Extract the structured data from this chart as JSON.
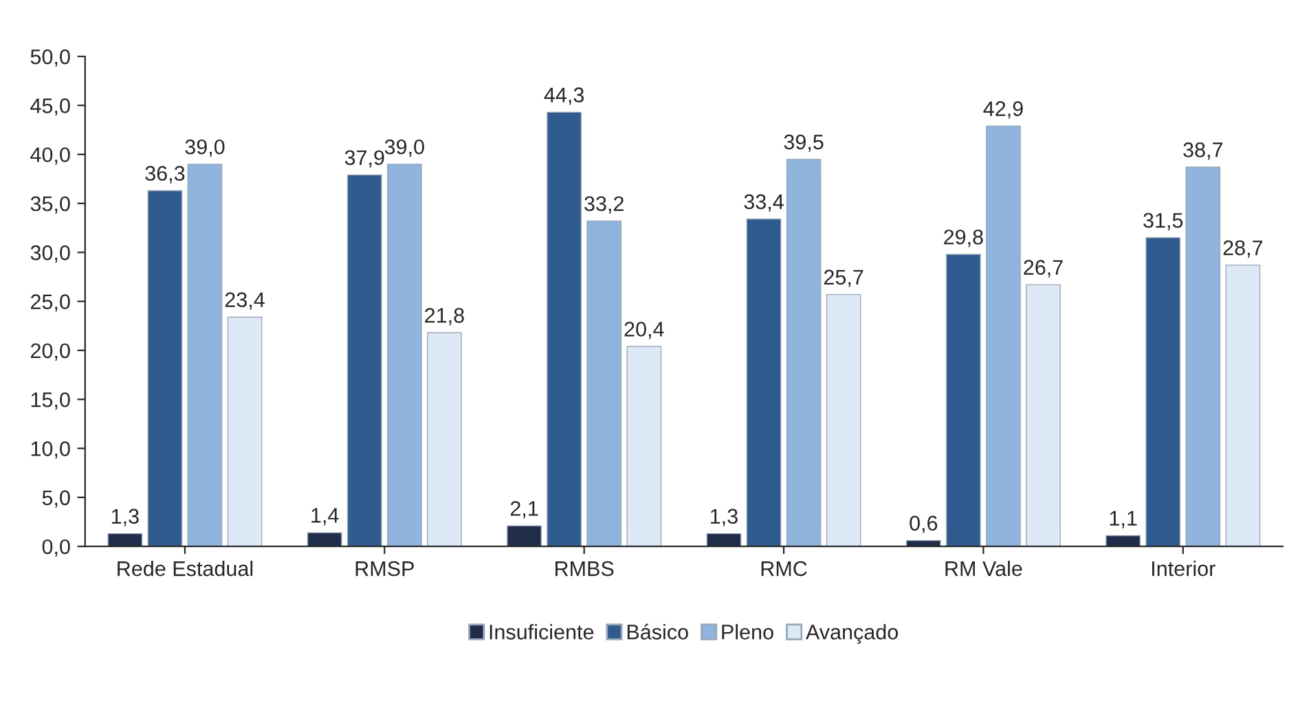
{
  "chart_data": {
    "type": "bar",
    "categories": [
      "Rede Estadual",
      "RMSP",
      "RMBS",
      "RMC",
      "RM Vale",
      "Interior"
    ],
    "series": [
      {
        "name": "Insuficiente",
        "color": "#1f2d4a",
        "values": [
          1.3,
          1.4,
          2.1,
          1.3,
          0.6,
          1.1
        ],
        "value_labels": [
          "1,3",
          "1,4",
          "2,1",
          "1,3",
          "0,6",
          "1,1"
        ]
      },
      {
        "name": "Básico",
        "color": "#2f5b8f",
        "values": [
          36.3,
          37.9,
          44.3,
          33.4,
          29.8,
          31.5
        ],
        "value_labels": [
          "36,3",
          "37,9",
          "44,3",
          "33,4",
          "29,8",
          "31,5"
        ]
      },
      {
        "name": "Pleno",
        "color": "#8fb4dd",
        "values": [
          39.0,
          39.0,
          33.2,
          39.5,
          42.9,
          38.7
        ],
        "value_labels": [
          "39,0",
          "39,0",
          "33,2",
          "39,5",
          "42,9",
          "38,7"
        ]
      },
      {
        "name": "Avançado",
        "color": "#dde9f6",
        "values": [
          23.4,
          21.8,
          20.4,
          25.7,
          26.7,
          28.7
        ],
        "value_labels": [
          "23,4",
          "21,8",
          "20,4",
          "25,7",
          "26,7",
          "28,7"
        ]
      }
    ],
    "ylim": [
      0,
      50
    ],
    "yticks": [
      {
        "value": 0,
        "label": "0,0"
      },
      {
        "value": 5,
        "label": "5,0"
      },
      {
        "value": 10,
        "label": "10,0"
      },
      {
        "value": 15,
        "label": "15,0"
      },
      {
        "value": 20,
        "label": "20,0"
      },
      {
        "value": 25,
        "label": "25,0"
      },
      {
        "value": 30,
        "label": "30,0"
      },
      {
        "value": 35,
        "label": "35,0"
      },
      {
        "value": 40,
        "label": "40,0"
      },
      {
        "value": 45,
        "label": "45,0"
      },
      {
        "value": 50,
        "label": "50,0"
      }
    ],
    "grid": false,
    "legend": "bottom"
  }
}
